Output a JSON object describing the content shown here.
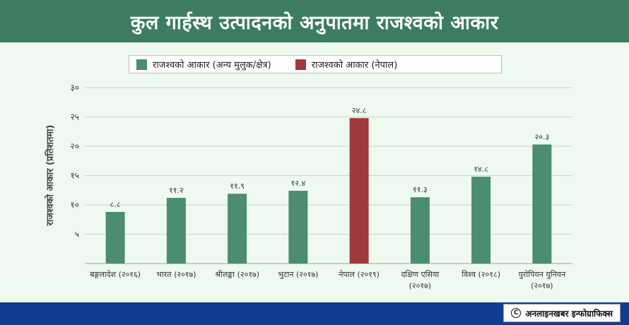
{
  "title": "कुल गार्हस्थ उत्पादनको अनुपातमा राजश्वको आकार",
  "legend": {
    "others": {
      "label": "राजश्वको आकार (अन्य मुलुक/क्षेत्र)",
      "color": "#4b8d6e"
    },
    "nepal": {
      "label": "राजश्वको आकार (नेपाल)",
      "color": "#a03a3c"
    }
  },
  "credit": {
    "icon": "copyright-icon",
    "text": "अनलाइनखबर इन्फोग्राफिक्स"
  },
  "chart_data": {
    "type": "bar",
    "title": "कुल गार्हस्थ उत्पादनको अनुपातमा राजश्वको आकार",
    "xlabel": "",
    "ylabel": "राजश्वको आकार (प्रतिशतमा)",
    "ylim": [
      0,
      30
    ],
    "yticks": [
      5,
      10,
      15,
      20,
      25,
      30
    ],
    "ytick_labels": [
      "५",
      "१०",
      "१५",
      "२०",
      "२५",
      "३०"
    ],
    "grid": true,
    "legend_position": "top-center",
    "categories": [
      [
        "बङ्गलादेश (२०१६)"
      ],
      [
        "भारत (२०१७)"
      ],
      [
        "श्रीलङ्का (२०१७)"
      ],
      [
        "भुटान (२०१७)"
      ],
      [
        "नेपाल (२०१९)"
      ],
      [
        "दक्षिण एसिया",
        "(२०१७)"
      ],
      [
        "विश्व (२०१८)"
      ],
      [
        "युरोपियन युनियन",
        "(२०१७)"
      ]
    ],
    "values": [
      8.8,
      11.2,
      11.9,
      12.4,
      24.8,
      11.3,
      14.8,
      20.3
    ],
    "value_labels": [
      "८.८",
      "११.२",
      "११.९",
      "१२.४",
      "२४.८",
      "११.३",
      "१४.८",
      "२०.३"
    ],
    "highlight_index": 4
  }
}
